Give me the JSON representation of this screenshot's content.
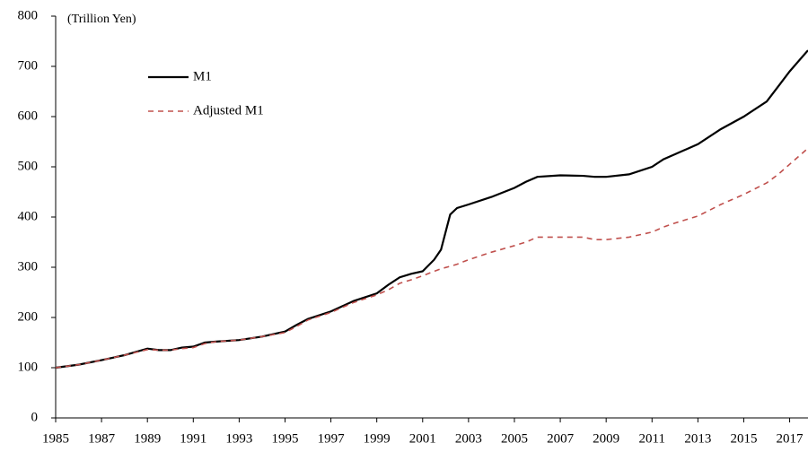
{
  "chart_data": {
    "type": "line",
    "unit_label": "(Trillion Yen)",
    "x": [
      1985,
      1986,
      1987,
      1988,
      1989,
      1989.5,
      1990,
      1990.5,
      1991,
      1991.5,
      1992,
      1993,
      1994,
      1995,
      1995.5,
      1996,
      1997,
      1998,
      1999,
      1999.5,
      2000,
      2000.5,
      2001,
      2001.5,
      2001.8,
      2002.2,
      2002.5,
      2003,
      2004,
      2005,
      2005.5,
      2006,
      2007,
      2008,
      2008.5,
      2009,
      2010,
      2011,
      2011.5,
      2012,
      2013,
      2014,
      2015,
      2016,
      2016.5,
      2017,
      2017.8
    ],
    "series": [
      {
        "name": "M1",
        "color": "#000000",
        "dash": false,
        "values": [
          100,
          106,
          115,
          125,
          138,
          135,
          135,
          140,
          142,
          150,
          152,
          155,
          162,
          172,
          185,
          197,
          212,
          233,
          248,
          265,
          280,
          287,
          292,
          315,
          335,
          405,
          418,
          425,
          440,
          458,
          470,
          480,
          483,
          482,
          480,
          480,
          485,
          500,
          515,
          525,
          545,
          575,
          600,
          630,
          660,
          690,
          732
        ]
      },
      {
        "name": "Adjusted M1",
        "color": "#c0504d",
        "dash": true,
        "values": [
          100,
          106,
          115,
          125,
          136,
          135,
          135,
          138,
          140,
          148,
          152,
          155,
          162,
          170,
          182,
          195,
          210,
          230,
          245,
          255,
          268,
          275,
          283,
          292,
          297,
          302,
          306,
          315,
          330,
          343,
          350,
          360,
          360,
          360,
          355,
          355,
          360,
          370,
          380,
          388,
          402,
          425,
          445,
          468,
          485,
          505,
          537
        ]
      }
    ],
    "xlim": [
      1985,
      2017.8
    ],
    "xticks": [
      1985,
      1987,
      1989,
      1991,
      1993,
      1995,
      1997,
      1999,
      2001,
      2003,
      2005,
      2007,
      2009,
      2011,
      2013,
      2015,
      2017
    ],
    "ylim": [
      0,
      800
    ],
    "yticks": [
      0,
      100,
      200,
      300,
      400,
      500,
      600,
      700,
      800
    ],
    "grid": false
  }
}
